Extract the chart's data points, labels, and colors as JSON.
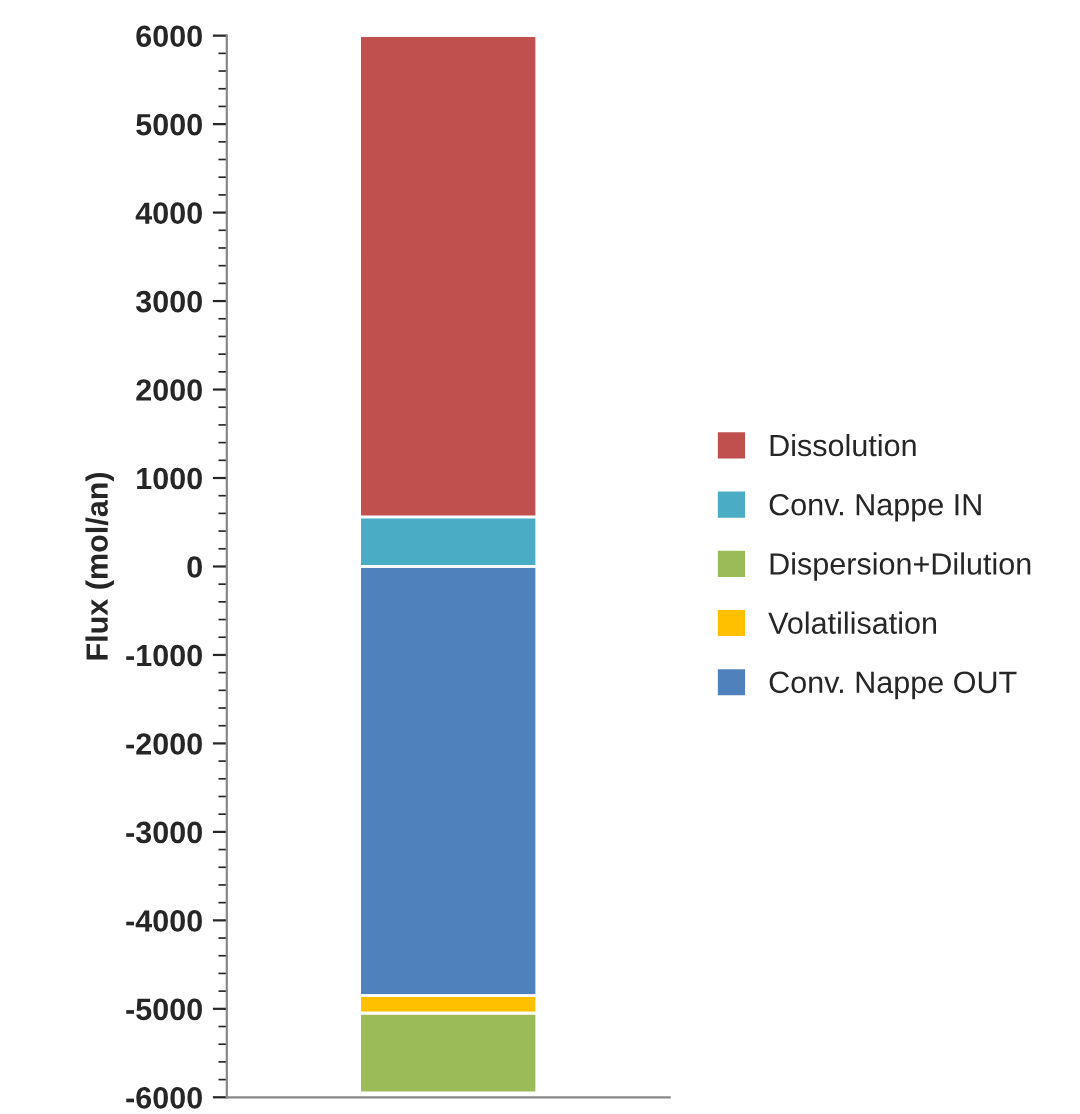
{
  "chart_data": {
    "type": "bar",
    "stacked": true,
    "ylabel": "Flux (mol/an)",
    "categories": [
      null
    ],
    "series": [
      {
        "name": "Dissolution",
        "color": "#c0504d",
        "values": [
          5440
        ]
      },
      {
        "name": "Conv. Nappe IN",
        "color": "#4bacc6",
        "values": [
          560
        ]
      },
      {
        "name": "Dispersion+Dilution",
        "color": "#9bbb59",
        "values": [
          -900
        ]
      },
      {
        "name": "Volatilisation",
        "color": "#ffc000",
        "values": [
          -200
        ]
      },
      {
        "name": "Conv. Nappe OUT",
        "color": "#4f81bd",
        "values": [
          -4850
        ]
      }
    ],
    "ylim": [
      -6000,
      6000
    ],
    "yticks": [
      6000,
      5000,
      4000,
      3000,
      2000,
      1000,
      0,
      -1000,
      -2000,
      -3000,
      -4000,
      -5000,
      -6000
    ],
    "grid": false,
    "legend": "right"
  }
}
